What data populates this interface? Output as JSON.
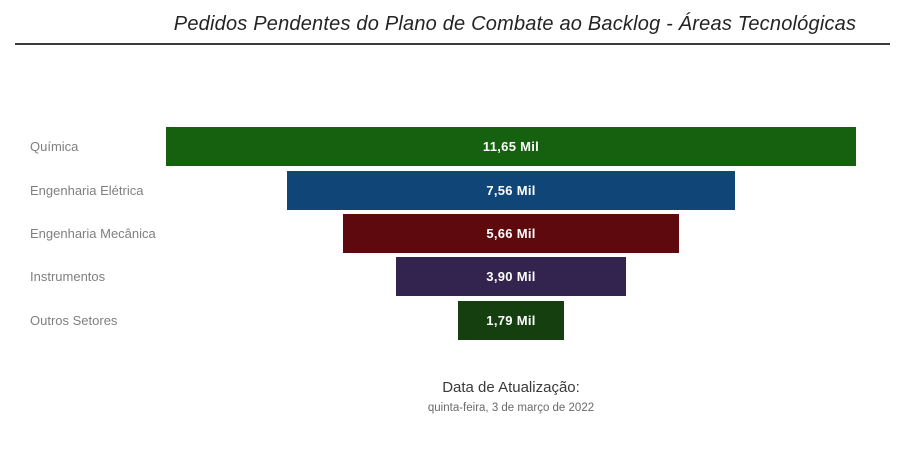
{
  "title": "Pedidos Pendentes do Plano de Combate ao Backlog - Áreas Tecnológicas",
  "chart_data": {
    "type": "bar",
    "subtype": "funnel",
    "orientation": "horizontal-centered",
    "title": "Pedidos Pendentes do Plano de Combate ao Backlog - Áreas Tecnológicas",
    "categories": [
      "Química",
      "Engenharia Elétrica",
      "Engenharia Mecânica",
      "Instrumentos",
      "Outros Setores"
    ],
    "values": [
      11.65,
      7.56,
      5.66,
      3.9,
      1.79
    ],
    "value_labels": [
      "11,65 Mil",
      "7,56 Mil",
      "5,66 Mil",
      "3,90 Mil",
      "1,79 Mil"
    ],
    "unit": "Mil",
    "max_value": 11.65,
    "bar_colors": [
      "#15610F",
      "#0F4677",
      "#5E090E",
      "#32234F",
      "#163F10"
    ],
    "category_label_color": "#7f7f7f",
    "value_label_color": "#ffffff",
    "legend": "none",
    "grid": false
  },
  "footer": {
    "update_label": "Data de Atualização:",
    "update_date": "quinta-feira, 3 de março de 2022"
  }
}
